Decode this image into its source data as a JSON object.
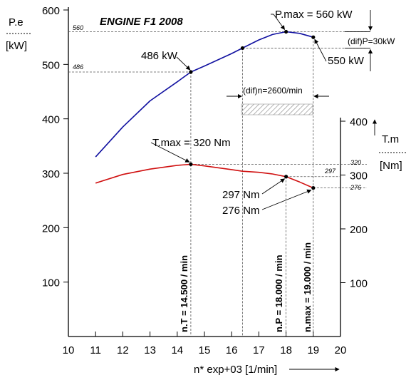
{
  "chart_data": {
    "type": "line",
    "title": "ENGINE F1 2008",
    "xlabel": "n* exp+03 [1/min]",
    "x_ticks": [
      "10",
      "11",
      "12",
      "13",
      "14",
      "15",
      "16",
      "17",
      "18",
      "19",
      "20"
    ],
    "xlim": [
      10,
      20
    ],
    "y_left": {
      "label": "P.e",
      "unit": "[kW]",
      "ticks": [
        "100",
        "200",
        "300",
        "400",
        "500",
        "600"
      ],
      "lim": [
        0,
        600
      ]
    },
    "y_right": {
      "label": "T.m",
      "unit": "[Nm]",
      "ticks": [
        "100",
        "200",
        "300",
        "400"
      ],
      "lim": [
        0,
        400
      ]
    },
    "series": [
      {
        "color": "#1010a0",
        "axis": "left",
        "x": [
          11,
          12,
          13,
          14,
          14.5,
          15,
          16,
          16.4,
          17,
          17.5,
          18,
          18.5,
          19
        ],
        "y": [
          330,
          385,
          433,
          468,
          486,
          497,
          520,
          530,
          545,
          555,
          560,
          557,
          550
        ]
      },
      {
        "color": "#d01010",
        "axis": "right",
        "x": [
          11,
          12,
          13,
          14,
          14.5,
          15,
          16,
          16.4,
          17,
          17.5,
          18,
          18.5,
          19
        ],
        "y": [
          285,
          301,
          311,
          318,
          320,
          317,
          310,
          307,
          305,
          302,
          297,
          287,
          276
        ]
      }
    ],
    "annotations": {
      "pmax": "P.max = 560 kW",
      "p486": "486 kW",
      "p550": "550 kW",
      "difP": "(dif)P=30kW",
      "difn": "(dif)n=2600/min",
      "tmax": "T.max = 320 Nm",
      "t297": "297 Nm",
      "t276": "276 Nm",
      "nT": "n.T = 14.500 / min",
      "nP": "n.P = 18.000 / min",
      "nmax": "n.max = 19.000 / min",
      "ref560": "560",
      "ref486": "486",
      "ref320": "320",
      "ref297": "297",
      "ref276": "276"
    },
    "grid": false,
    "legend": "none",
    "colors": {
      "power": "#1010a0",
      "torque": "#d01010"
    }
  }
}
